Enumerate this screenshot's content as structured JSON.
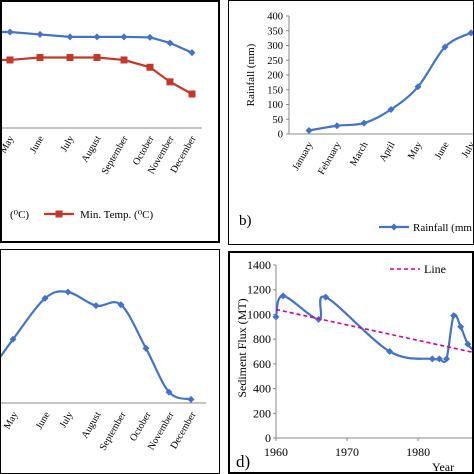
{
  "chart_data": [
    {
      "id": "a",
      "type": "line",
      "panel_label": "",
      "categories": [
        "May",
        "June",
        "July",
        "August",
        "September",
        "October",
        "November",
        "December"
      ],
      "series": [
        {
          "name": "",
          "color": "#4472C4",
          "marker": "diamond",
          "values": [
            38.5,
            37.5,
            36.5,
            36.5,
            36.5,
            36.3,
            34,
            30
          ]
        },
        {
          "name": "Min. Temp. (⁰C)",
          "color": "#C0392B",
          "marker": "square",
          "values": [
            27,
            28,
            28,
            28,
            27,
            24,
            18,
            13
          ]
        }
      ],
      "legend_fragment": "(⁰C)",
      "legend_position": "bottom"
    },
    {
      "id": "b",
      "type": "line",
      "panel_label": "b)",
      "ylabel": "Rainfall (mm)",
      "yticks": [
        "0",
        "50",
        "100",
        "150",
        "200",
        "250",
        "300",
        "350",
        "400"
      ],
      "ylim": [
        0,
        400
      ],
      "categories": [
        "January",
        "February",
        "March",
        "April",
        "May",
        "June",
        "July"
      ],
      "series": [
        {
          "name": "Rainfall (mm",
          "color": "#4472C4",
          "marker": "diamond",
          "values": [
            12,
            28,
            37,
            83,
            160,
            295,
            343
          ]
        }
      ],
      "legend_position": "bottom"
    },
    {
      "id": "c",
      "type": "line",
      "panel_label": "",
      "categories": [
        "May",
        "June",
        "July",
        "August",
        "September",
        "October",
        "November",
        "December"
      ],
      "series": [
        {
          "name": "",
          "color": "#4472C4",
          "marker": "diamond",
          "values": [
            70,
            115,
            122,
            107,
            108,
            60,
            12,
            4
          ]
        }
      ]
    },
    {
      "id": "d",
      "type": "line",
      "panel_label": "d)",
      "ylabel": "Sediment Flux (MT)",
      "xlabel": "Year",
      "yticks": [
        "0",
        "200",
        "400",
        "600",
        "800",
        "1000",
        "1200",
        "1400"
      ],
      "ylim": [
        0,
        1400
      ],
      "xticks": [
        "1960",
        "1970",
        "1980"
      ],
      "xlim": [
        1960,
        1989
      ],
      "series": [
        {
          "name": "",
          "color": "#4472C4",
          "marker": "diamond",
          "x": [
            1960,
            1961,
            1966,
            1967,
            1976,
            1982,
            1983,
            1984,
            1985,
            1986,
            1987,
            1988
          ],
          "values": [
            980,
            1150,
            960,
            1140,
            700,
            640,
            640,
            640,
            990,
            900,
            760,
            700
          ]
        },
        {
          "name": "Line",
          "color": "#CC0099",
          "style": "dashed",
          "x": [
            1960,
            1988
          ],
          "values": [
            1040,
            690
          ]
        }
      ],
      "legend_position": "top-right"
    }
  ]
}
